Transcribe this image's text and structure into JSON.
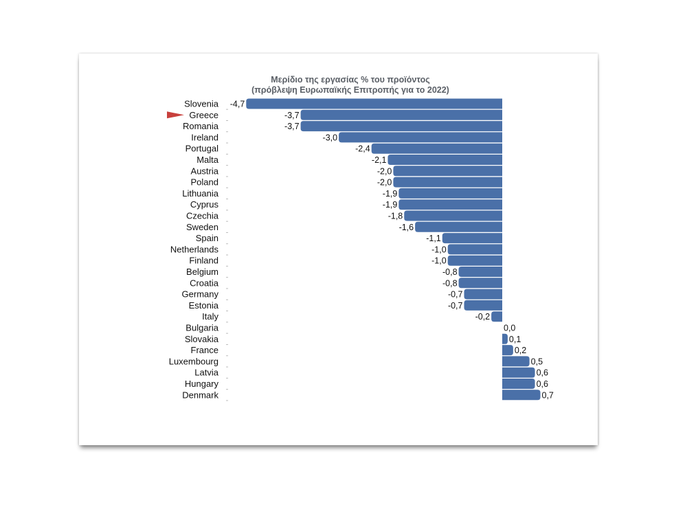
{
  "chart_data": {
    "type": "bar",
    "orientation": "horizontal",
    "title": "Μερίδιο της εργασίας % του προϊόντος",
    "subtitle": "(πρόβλεψη Ευρωπαϊκής Επιτροπής για το 2022)",
    "xlabel": "",
    "ylabel": "",
    "xlim": [
      -4.7,
      0.7
    ],
    "grid": false,
    "highlight": "Greece",
    "colors": {
      "bar": "#4a70a8",
      "marker": "#c8403c",
      "title": "#5a5f66"
    },
    "categories": [
      "Slovenia",
      "Greece",
      "Romania",
      "Ireland",
      "Portugal",
      "Malta",
      "Austria",
      "Poland",
      "Lithuania",
      "Cyprus",
      "Czechia",
      "Sweden",
      "Spain",
      "Netherlands",
      "Finland",
      "Belgium",
      "Croatia",
      "Germany",
      "Estonia",
      "Italy",
      "Bulgaria",
      "Slovakia",
      "France",
      "Luxembourg",
      "Latvia",
      "Hungary",
      "Denmark"
    ],
    "values": [
      -4.7,
      -3.7,
      -3.7,
      -3.0,
      -2.4,
      -2.1,
      -2.0,
      -2.0,
      -1.9,
      -1.9,
      -1.8,
      -1.6,
      -1.1,
      -1.0,
      -1.0,
      -0.8,
      -0.8,
      -0.7,
      -0.7,
      -0.2,
      0.0,
      0.1,
      0.2,
      0.5,
      0.6,
      0.6,
      0.7
    ],
    "value_labels": [
      "-4,7",
      "-3,7",
      "-3,7",
      "-3,0",
      "-2,4",
      "-2,1",
      "-2,0",
      "-2,0",
      "-1,9",
      "-1,9",
      "-1,8",
      "-1,6",
      "-1,1",
      "-1,0",
      "-1,0",
      "-0,8",
      "-0,8",
      "-0,7",
      "-0,7",
      "-0,2",
      "0,0",
      "0,1",
      "0,2",
      "0,5",
      "0,6",
      "0,6",
      "0,7"
    ]
  }
}
